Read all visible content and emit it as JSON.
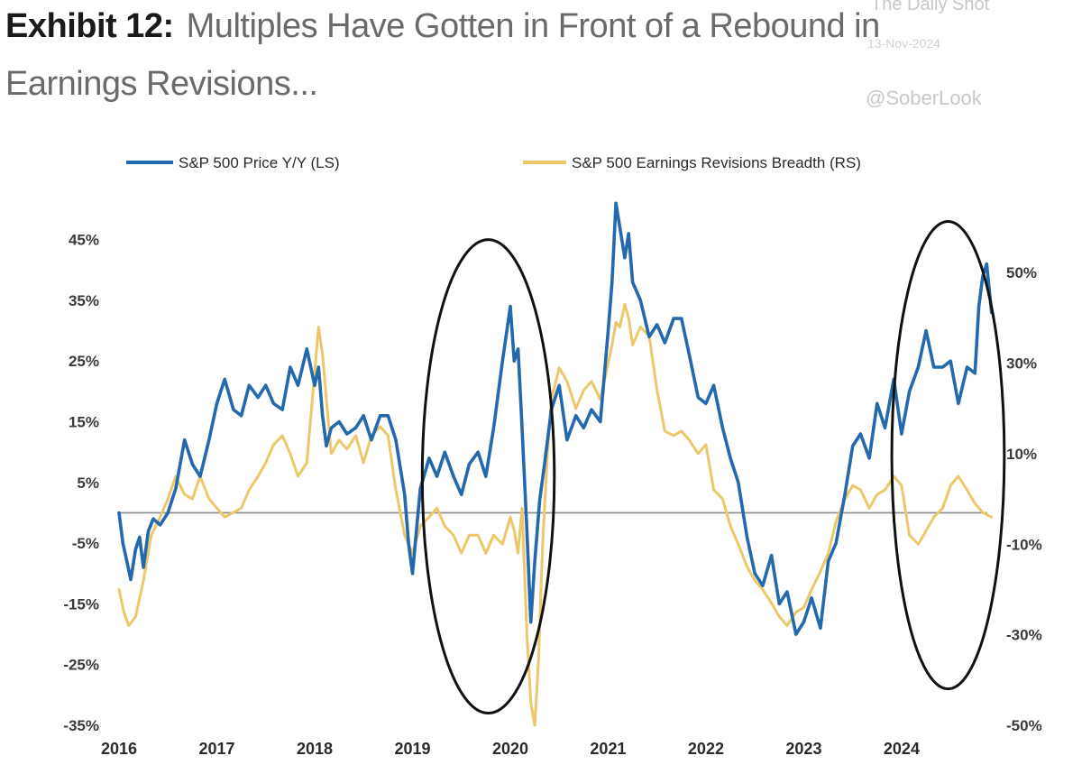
{
  "header": {
    "exhibit_label": "Exhibit 12:",
    "title_line1": "Multiples Have Gotten in Front of a Rebound in",
    "title_line2": "Earnings Revisions..."
  },
  "watermarks": {
    "source": "The Daily Shot",
    "date": "13-Nov-2024",
    "handle": "@SoberLook"
  },
  "colors": {
    "price_series": "#2468ad",
    "revisions_series": "#ecc86b",
    "zero_line": "#8a8a8a",
    "ellipse": "#111111",
    "title_bold": "#1a1a1a",
    "title_text": "#6a6a6a"
  },
  "chart_data": {
    "type": "line",
    "title": "Multiples Have Gotten in Front of a Rebound in Earnings Revisions...",
    "legend": [
      "S&P 500 Price Y/Y (LS)",
      "S&P 500 Earnings Revisions Breadth (RS)"
    ],
    "legend_position": "top",
    "grid": false,
    "x_ticks": [
      "2016",
      "2017",
      "2018",
      "2019",
      "2020",
      "2021",
      "2022",
      "2023",
      "2024"
    ],
    "x_range": [
      2016.0,
      2024.95
    ],
    "y_left": {
      "ticks": [
        "45%",
        "35%",
        "25%",
        "15%",
        "5%",
        "-5%",
        "-15%",
        "-25%",
        "-35%"
      ],
      "tick_values": [
        45,
        35,
        25,
        15,
        5,
        -5,
        -15,
        -25,
        -35
      ],
      "range": [
        -35,
        50
      ]
    },
    "y_right": {
      "ticks": [
        "50%",
        "30%",
        "10%",
        "-10%",
        "-30%",
        "-50%"
      ],
      "tick_values": [
        50,
        30,
        10,
        -10,
        -30,
        -50
      ],
      "range": [
        -50,
        64
      ]
    },
    "reference_line": {
      "axis": "left",
      "value": 0
    },
    "annotations": [
      {
        "shape": "ellipse",
        "x_range": [
          2019.1,
          2020.45
        ],
        "y_left_range": [
          -33,
          45
        ]
      },
      {
        "shape": "ellipse",
        "x_range": [
          2023.9,
          2025.05
        ],
        "y_left_range": [
          -29,
          48
        ]
      }
    ],
    "series": [
      {
        "name": "S&P 500 Price Y/Y (LS)",
        "axis": "left",
        "x": [
          2016.0,
          2016.04,
          2016.08,
          2016.12,
          2016.17,
          2016.21,
          2016.25,
          2016.3,
          2016.35,
          2016.42,
          2016.5,
          2016.58,
          2016.67,
          2016.75,
          2016.83,
          2016.92,
          2017.0,
          2017.08,
          2017.17,
          2017.25,
          2017.33,
          2017.42,
          2017.5,
          2017.58,
          2017.67,
          2017.75,
          2017.83,
          2017.92,
          2018.0,
          2018.04,
          2018.08,
          2018.12,
          2018.17,
          2018.25,
          2018.33,
          2018.42,
          2018.5,
          2018.58,
          2018.67,
          2018.75,
          2018.83,
          2018.92,
          2018.96,
          2019.0,
          2019.04,
          2019.08,
          2019.17,
          2019.25,
          2019.33,
          2019.42,
          2019.5,
          2019.58,
          2019.67,
          2019.75,
          2019.83,
          2019.92,
          2020.0,
          2020.04,
          2020.08,
          2020.12,
          2020.17,
          2020.21,
          2020.25,
          2020.3,
          2020.35,
          2020.42,
          2020.5,
          2020.58,
          2020.67,
          2020.75,
          2020.83,
          2020.92,
          2021.0,
          2021.04,
          2021.08,
          2021.12,
          2021.17,
          2021.21,
          2021.25,
          2021.33,
          2021.42,
          2021.5,
          2021.58,
          2021.67,
          2021.75,
          2021.83,
          2021.92,
          2022.0,
          2022.08,
          2022.17,
          2022.25,
          2022.33,
          2022.42,
          2022.5,
          2022.58,
          2022.67,
          2022.75,
          2022.83,
          2022.92,
          2023.0,
          2023.08,
          2023.17,
          2023.25,
          2023.33,
          2023.42,
          2023.5,
          2023.58,
          2023.67,
          2023.75,
          2023.83,
          2023.92,
          2024.0,
          2024.08,
          2024.17,
          2024.25,
          2024.33,
          2024.42,
          2024.5,
          2024.58,
          2024.67,
          2024.75,
          2024.79,
          2024.83,
          2024.87,
          2024.92
        ],
        "values": [
          0,
          -5,
          -8,
          -11,
          -6,
          -4,
          -9,
          -3,
          -1,
          -2,
          0,
          4,
          12,
          8,
          6,
          12,
          18,
          22,
          17,
          16,
          21,
          19,
          21,
          18,
          17,
          24,
          21,
          27,
          21,
          24,
          16,
          11,
          14,
          15,
          13,
          14,
          16,
          12,
          16,
          16,
          12,
          3,
          -5,
          -10,
          -3,
          4,
          9,
          6,
          10,
          6,
          3,
          8,
          10,
          6,
          14,
          25,
          34,
          25,
          27,
          14,
          -3,
          -18,
          -8,
          2,
          8,
          17,
          21,
          12,
          16,
          14,
          17,
          15,
          30,
          38,
          51,
          47,
          42,
          46,
          38,
          35,
          29,
          31,
          28,
          32,
          32,
          26,
          19,
          18,
          21,
          14,
          9,
          5,
          -4,
          -10,
          -12,
          -7,
          -15,
          -13,
          -20,
          -18,
          -14,
          -19,
          -8,
          -5,
          3,
          11,
          13,
          9,
          18,
          14,
          22,
          13,
          20,
          24,
          30,
          24,
          24,
          25,
          18,
          24,
          23,
          34,
          39,
          41,
          33
        ]
      },
      {
        "name": "S&P 500 Earnings Revisions Breadth (RS)",
        "axis": "right",
        "x": [
          2016.0,
          2016.05,
          2016.1,
          2016.17,
          2016.25,
          2016.33,
          2016.42,
          2016.5,
          2016.58,
          2016.67,
          2016.75,
          2016.83,
          2016.92,
          2017.0,
          2017.08,
          2017.17,
          2017.25,
          2017.33,
          2017.42,
          2017.5,
          2017.58,
          2017.67,
          2017.75,
          2017.83,
          2017.92,
          2018.0,
          2018.04,
          2018.08,
          2018.12,
          2018.17,
          2018.25,
          2018.33,
          2018.42,
          2018.5,
          2018.58,
          2018.67,
          2018.75,
          2018.83,
          2018.92,
          2019.0,
          2019.08,
          2019.17,
          2019.25,
          2019.33,
          2019.42,
          2019.5,
          2019.58,
          2019.67,
          2019.75,
          2019.83,
          2019.92,
          2020.0,
          2020.04,
          2020.08,
          2020.12,
          2020.17,
          2020.21,
          2020.25,
          2020.29,
          2020.33,
          2020.38,
          2020.42,
          2020.5,
          2020.58,
          2020.67,
          2020.75,
          2020.83,
          2020.92,
          2021.0,
          2021.04,
          2021.08,
          2021.12,
          2021.17,
          2021.21,
          2021.25,
          2021.33,
          2021.42,
          2021.5,
          2021.58,
          2021.67,
          2021.75,
          2021.83,
          2021.92,
          2022.0,
          2022.08,
          2022.17,
          2022.25,
          2022.33,
          2022.42,
          2022.5,
          2022.58,
          2022.67,
          2022.75,
          2022.83,
          2022.92,
          2023.0,
          2023.08,
          2023.17,
          2023.25,
          2023.33,
          2023.42,
          2023.5,
          2023.58,
          2023.67,
          2023.75,
          2023.83,
          2023.92,
          2024.0,
          2024.08,
          2024.17,
          2024.25,
          2024.33,
          2024.42,
          2024.5,
          2024.58,
          2024.67,
          2024.75,
          2024.83,
          2024.92
        ],
        "values": [
          -20,
          -25,
          -28,
          -26,
          -18,
          -8,
          -4,
          0,
          5,
          1,
          0,
          5,
          0,
          -2,
          -4,
          -3,
          -2,
          2,
          5,
          8,
          12,
          14,
          10,
          5,
          8,
          28,
          38,
          32,
          22,
          10,
          13,
          11,
          14,
          8,
          14,
          16,
          14,
          2,
          -8,
          -12,
          -6,
          -4,
          -2,
          -6,
          -8,
          -12,
          -8,
          -8,
          -12,
          -8,
          -10,
          -4,
          -7,
          -12,
          -2,
          -30,
          -45,
          -50,
          -35,
          -10,
          10,
          22,
          29,
          26,
          20,
          24,
          26,
          22,
          30,
          34,
          39,
          38,
          43,
          40,
          34,
          38,
          36,
          24,
          15,
          14,
          15,
          13,
          10,
          12,
          2,
          0,
          -6,
          -10,
          -15,
          -18,
          -20,
          -23,
          -26,
          -28,
          -25,
          -24,
          -20,
          -16,
          -12,
          -5,
          0,
          3,
          2,
          -2,
          1,
          2,
          5,
          3,
          -8,
          -10,
          -7,
          -4,
          -2,
          3,
          5,
          2,
          -1,
          -3,
          -4
        ]
      }
    ]
  }
}
